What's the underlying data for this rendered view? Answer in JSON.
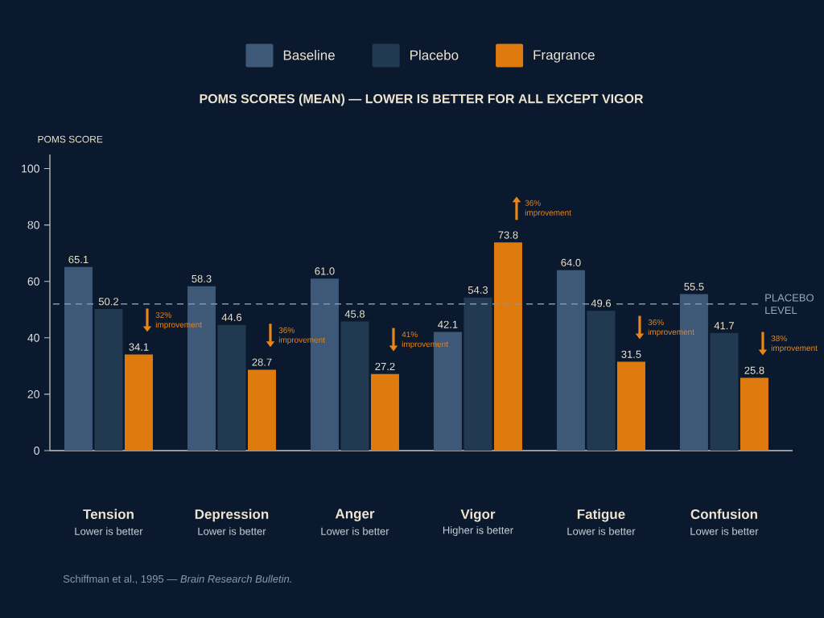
{
  "chart_data": {
    "type": "bar",
    "title": "POMS SCORES (MEAN) — LOWER IS BETTER FOR ALL EXCEPT VIGOR",
    "ylabel": "POMS SCORE",
    "categories": [
      "Tension",
      "Depression",
      "Anger",
      "Vigor",
      "Fatigue",
      "Confusion"
    ],
    "series": [
      {
        "name": "Baseline",
        "color": "#3e5878",
        "values": [
          65.1,
          58.3,
          61.0,
          42.1,
          64.0,
          55.5
        ],
        "value_labels": [
          "65.1",
          "58.3",
          "61.0",
          "42.1",
          "64.0",
          "55.5"
        ]
      },
      {
        "name": "Placebo",
        "color": "#213a52",
        "values": [
          50.2,
          44.6,
          45.8,
          54.3,
          49.6,
          41.7
        ],
        "value_labels": [
          "50.2",
          "44.6",
          "45.8",
          "54.3",
          "49.6",
          "41.7"
        ]
      },
      {
        "name": "Fragrance",
        "color": "#de7a0e",
        "values": [
          34.1,
          28.7,
          27.2,
          73.8,
          31.5,
          25.8
        ],
        "value_labels": [
          "34.1",
          "28.7",
          "27.2",
          "73.8",
          "31.5",
          "25.8"
        ]
      }
    ],
    "ylim": [
      0,
      105
    ],
    "yticks": [
      0,
      20,
      40,
      60,
      80,
      100
    ],
    "legend": "top",
    "ref_lines": [
      {
        "axis": "y",
        "value": 52,
        "label": "PLACEBO LEVEL",
        "color": "#7f95b0",
        "line_style": "dashed"
      }
    ],
    "annotations": [
      "32% improvement",
      "36% improvement",
      "41% improvement",
      "36% improvement",
      "36% improvement",
      "38% improvement",
      "Lower is better",
      "Lower is better",
      "Lower is better",
      "Higher is better",
      "Lower is better",
      "Lower is better",
      "Schiffman et al., 1995 — *Brain Research Bulletin.*"
    ]
  }
}
